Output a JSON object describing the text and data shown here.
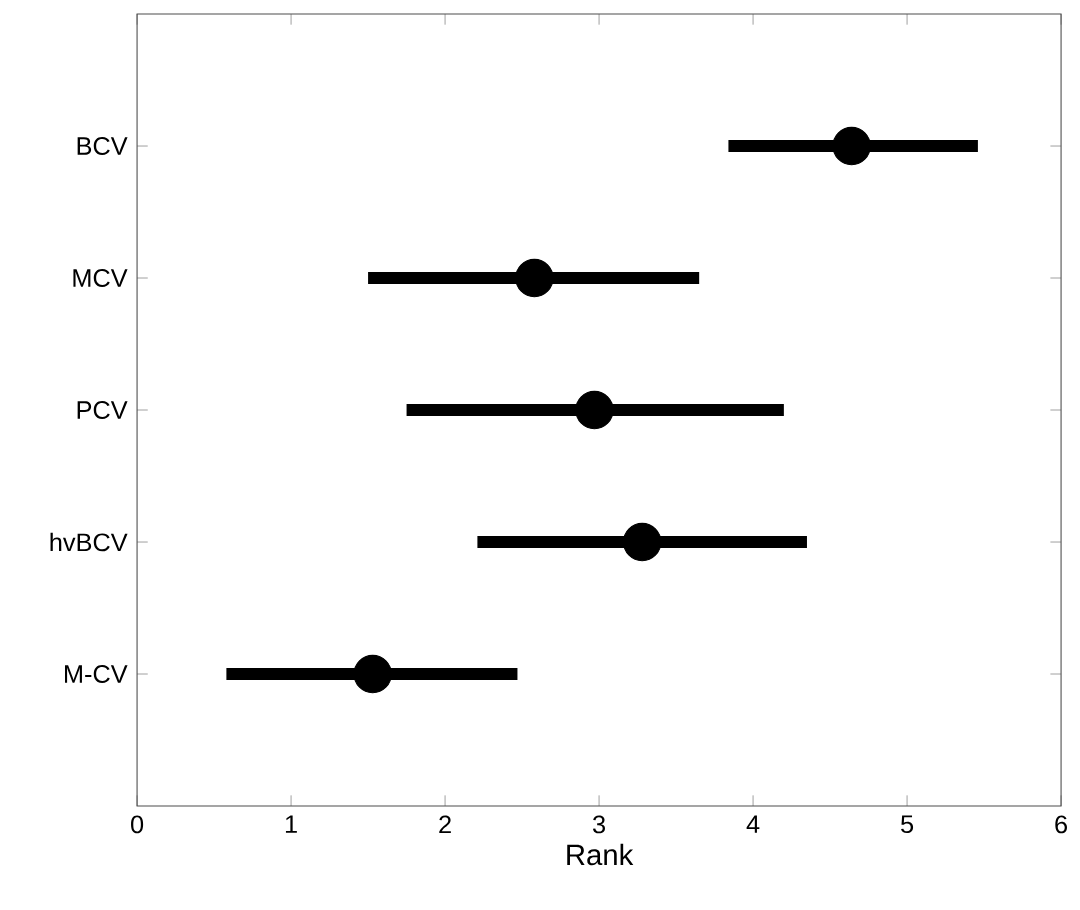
{
  "chart_data": {
    "type": "scatter",
    "orientation": "horizontal",
    "categories": [
      "BCV",
      "MCV",
      "PCV",
      "hvBCV",
      "M-CV"
    ],
    "values": [
      4.64,
      2.58,
      2.97,
      3.28,
      1.53
    ],
    "errors": [
      [
        3.84,
        5.46
      ],
      [
        1.5,
        3.65
      ],
      [
        1.75,
        4.2
      ],
      [
        2.21,
        4.35
      ],
      [
        0.58,
        2.47
      ]
    ],
    "color": "#000000",
    "marker": "circle",
    "xlabel": "Rank",
    "xlim": [
      0,
      6
    ],
    "xticks": [
      0,
      1,
      2,
      3,
      4,
      5,
      6
    ],
    "grid": false
  }
}
